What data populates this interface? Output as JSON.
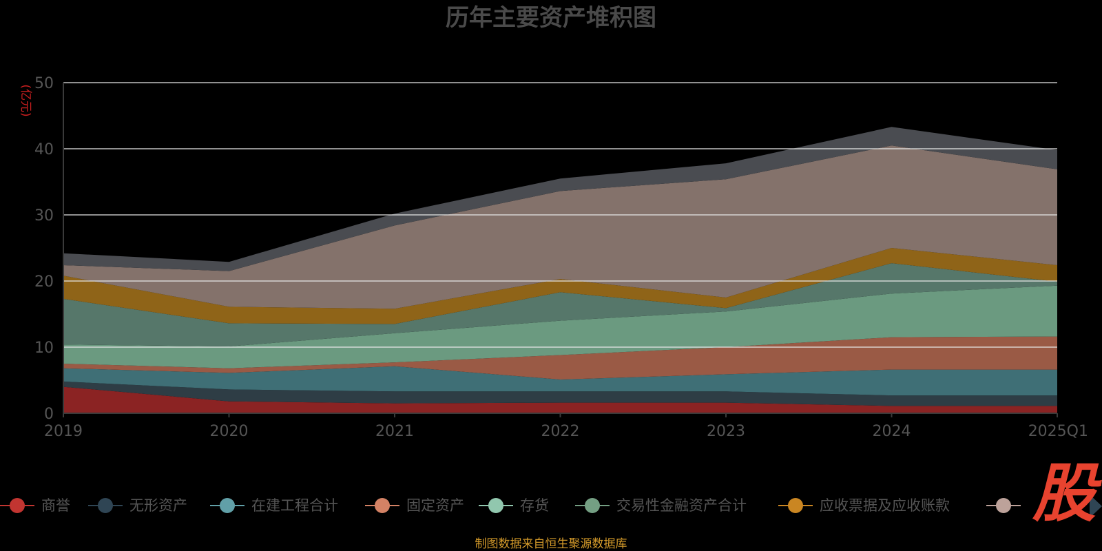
{
  "chart_data": {
    "type": "area",
    "stacked": true,
    "title": "历年主要资产堆积图",
    "ylabel": "(亿元)",
    "categories": [
      "2019",
      "2020",
      "2021",
      "2022",
      "2023",
      "2024",
      "2025Q1"
    ],
    "y_ticks": [
      "0",
      "10",
      "20",
      "30",
      "40",
      "50"
    ],
    "ylim": [
      0,
      50
    ],
    "grid": true,
    "legend_position": "bottom",
    "series": [
      {
        "name": "商誉",
        "color": "#8b2323",
        "marker": "#c23531",
        "values": [
          4.0,
          1.8,
          1.5,
          1.6,
          1.6,
          1.1,
          1.1
        ]
      },
      {
        "name": "无形资产",
        "color": "#2e3d45",
        "marker": "#2f4554",
        "values": [
          0.8,
          1.8,
          1.8,
          1.7,
          1.7,
          1.6,
          1.6
        ]
      },
      {
        "name": "在建工程合计",
        "color": "#3f6f76",
        "marker": "#61a0a8",
        "values": [
          2.0,
          2.5,
          3.8,
          1.8,
          2.6,
          3.9,
          3.9
        ]
      },
      {
        "name": "固定资产",
        "color": "#9a5a45",
        "marker": "#d48265",
        "values": [
          0.7,
          0.7,
          0.6,
          3.7,
          4.1,
          4.9,
          5.0
        ]
      },
      {
        "name": "存货",
        "color": "#6b9a80",
        "marker": "#91c7ae",
        "values": [
          2.9,
          3.3,
          4.4,
          5.2,
          5.4,
          6.6,
          7.7
        ]
      },
      {
        "name": "交易性金融资产合计",
        "color": "#56776a",
        "marker": "#749f83",
        "values": [
          6.9,
          3.5,
          1.4,
          4.3,
          0.5,
          4.6,
          0.6
        ]
      },
      {
        "name": "应收票据及应收账款",
        "color": "#8f6418",
        "marker": "#ca8622",
        "values": [
          3.5,
          2.5,
          2.3,
          2.0,
          1.6,
          2.3,
          2.5
        ]
      },
      {
        "name": "",
        "color": "#84726b",
        "marker": "#bda29a",
        "values": [
          1.6,
          5.4,
          12.6,
          13.3,
          17.9,
          15.5,
          14.5
        ]
      },
      {
        "name": "",
        "color": "#4a4c51",
        "marker": "#6e7074",
        "values": [
          1.8,
          1.4,
          1.8,
          1.9,
          2.4,
          2.8,
          2.9
        ]
      }
    ]
  },
  "logo_text": "股",
  "source_text": "制图数据来自恒生聚源数据库"
}
